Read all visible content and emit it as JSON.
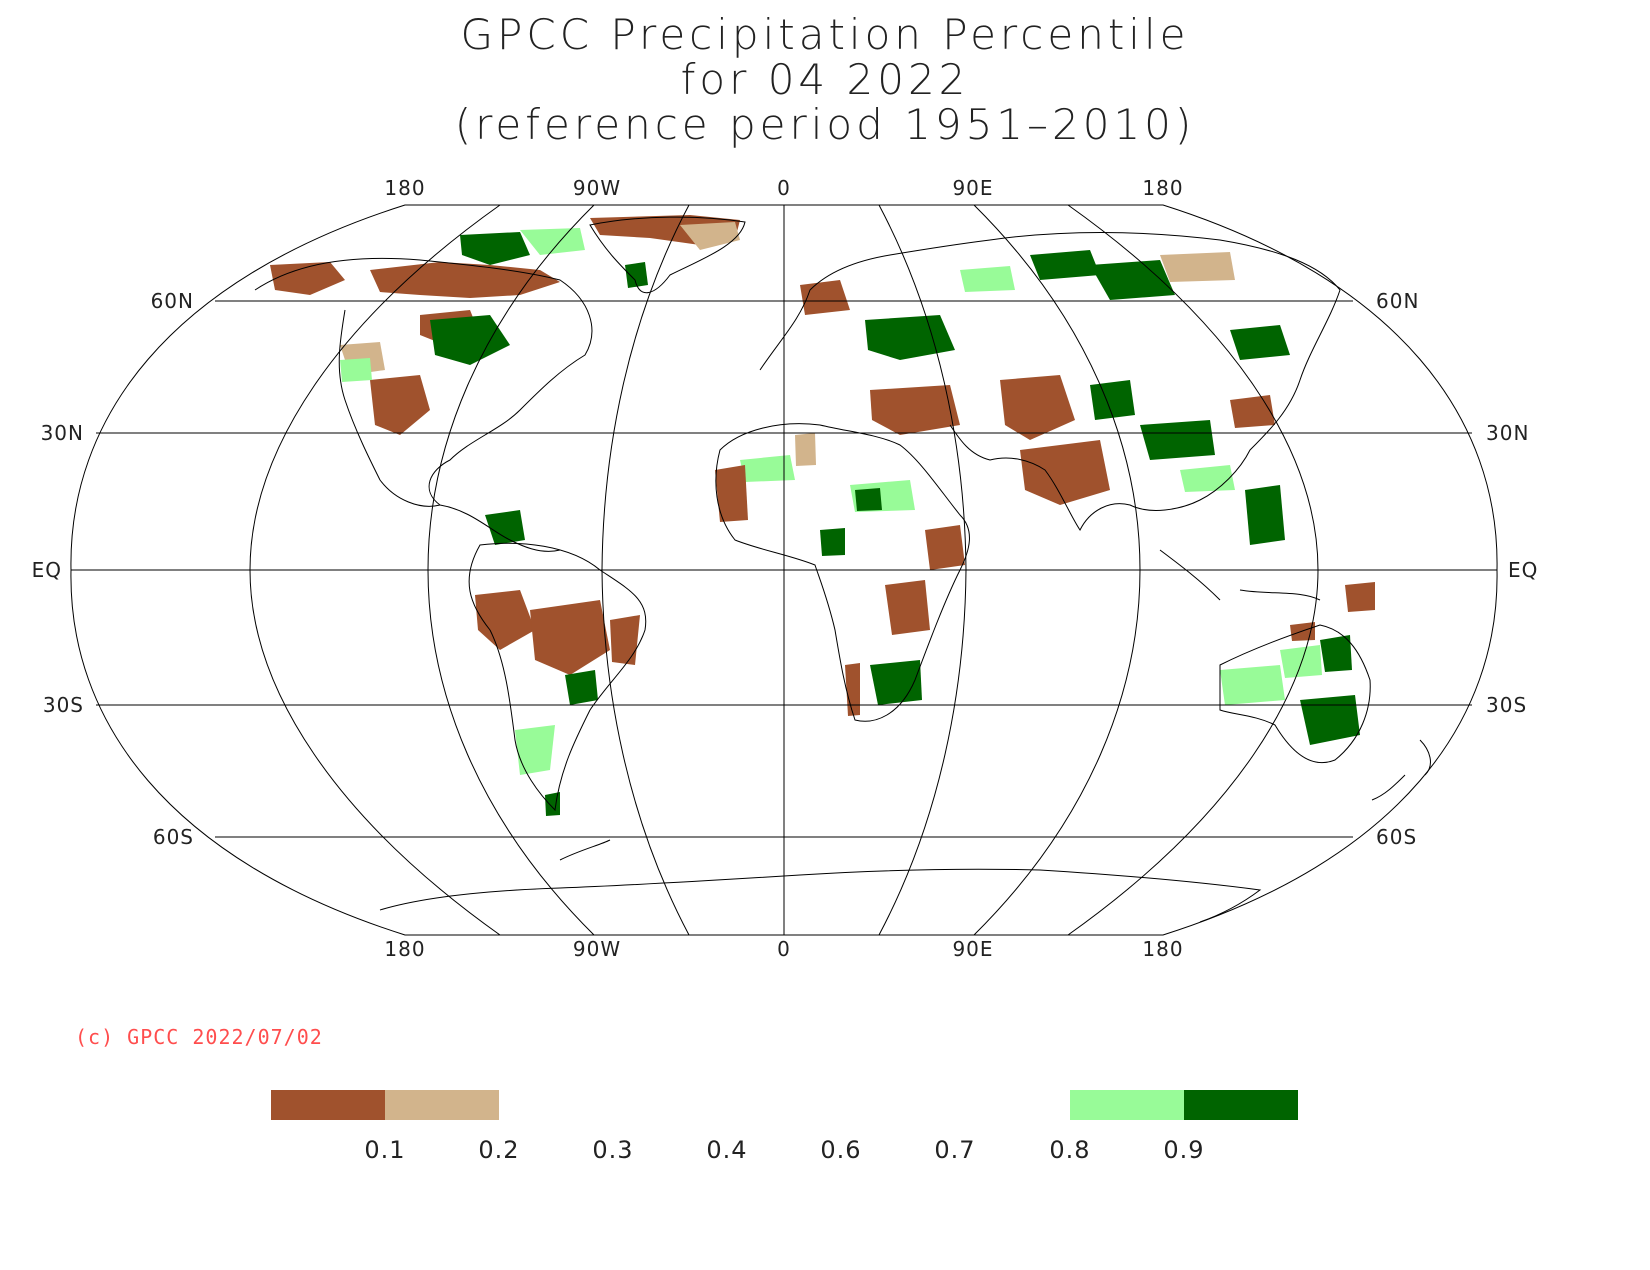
{
  "title": {
    "line1": "GPCC Precipitation Percentile",
    "line2": "for 04 2022",
    "line3": "(reference period 1951–2010)"
  },
  "copyright": "(c) GPCC 2022/07/02",
  "colors": {
    "very_dry": "#a0522d",
    "dry": "#d2b48c",
    "wet": "#98fb98",
    "very_wet": "#006400",
    "grid": "#000000",
    "coast": "#000000"
  },
  "map": {
    "projection": "Robinson",
    "central_meridian": 0,
    "top_longitude_labels": [
      "180",
      "90W",
      "0",
      "90E",
      "180"
    ],
    "bottom_longitude_labels": [
      "180",
      "90W",
      "0",
      "90E",
      "180"
    ],
    "left_latitude_labels": [
      "60N",
      "30N",
      "EQ",
      "30S",
      "60S"
    ],
    "right_latitude_labels": [
      "60N",
      "30N",
      "EQ",
      "30S",
      "60S"
    ],
    "longitude_lines": [
      -180,
      -135,
      -90,
      -45,
      0,
      45,
      90,
      135,
      180
    ],
    "latitude_lines": [
      60,
      30,
      0,
      -30,
      -60
    ]
  },
  "legend": {
    "ticks": [
      "0.1",
      "0.2",
      "0.3",
      "0.4",
      "0.6",
      "0.7",
      "0.8",
      "0.9"
    ],
    "colored_bins": [
      {
        "from": "0",
        "to": "0.1",
        "color_key": "very_dry"
      },
      {
        "from": "0.1",
        "to": "0.2",
        "color_key": "dry"
      },
      {
        "from": "0.8",
        "to": "0.9",
        "color_key": "wet"
      },
      {
        "from": "0.9",
        "to": "1",
        "color_key": "very_wet"
      }
    ]
  }
}
